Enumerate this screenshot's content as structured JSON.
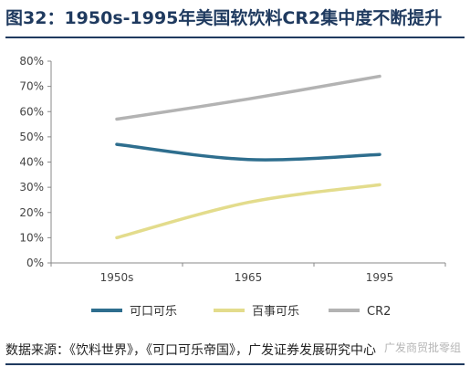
{
  "title": "图32：1950s-1995年美国软饮料CR2集中度不断提升",
  "source": "数据来源：《饮料世界》，《可口可乐帝国》，广发证券发展研究中心",
  "watermark": "广发商贸批零组",
  "chart_data": {
    "type": "line",
    "categories": [
      "1950s",
      "1965",
      "1995"
    ],
    "y_tick_labels": [
      "0%",
      "10%",
      "20%",
      "30%",
      "40%",
      "50%",
      "60%",
      "70%",
      "80%"
    ],
    "ylim": [
      0,
      80
    ],
    "grid": false,
    "legend_position": "bottom",
    "series": [
      {
        "name": "可口可乐",
        "color": "#2e6e8e",
        "values": [
          47,
          41,
          43
        ]
      },
      {
        "name": "百事可乐",
        "color": "#e3dc8c",
        "values": [
          10,
          24,
          31
        ]
      },
      {
        "name": "CR2",
        "color": "#b3b3b3",
        "values": [
          57,
          65,
          74
        ]
      }
    ]
  }
}
